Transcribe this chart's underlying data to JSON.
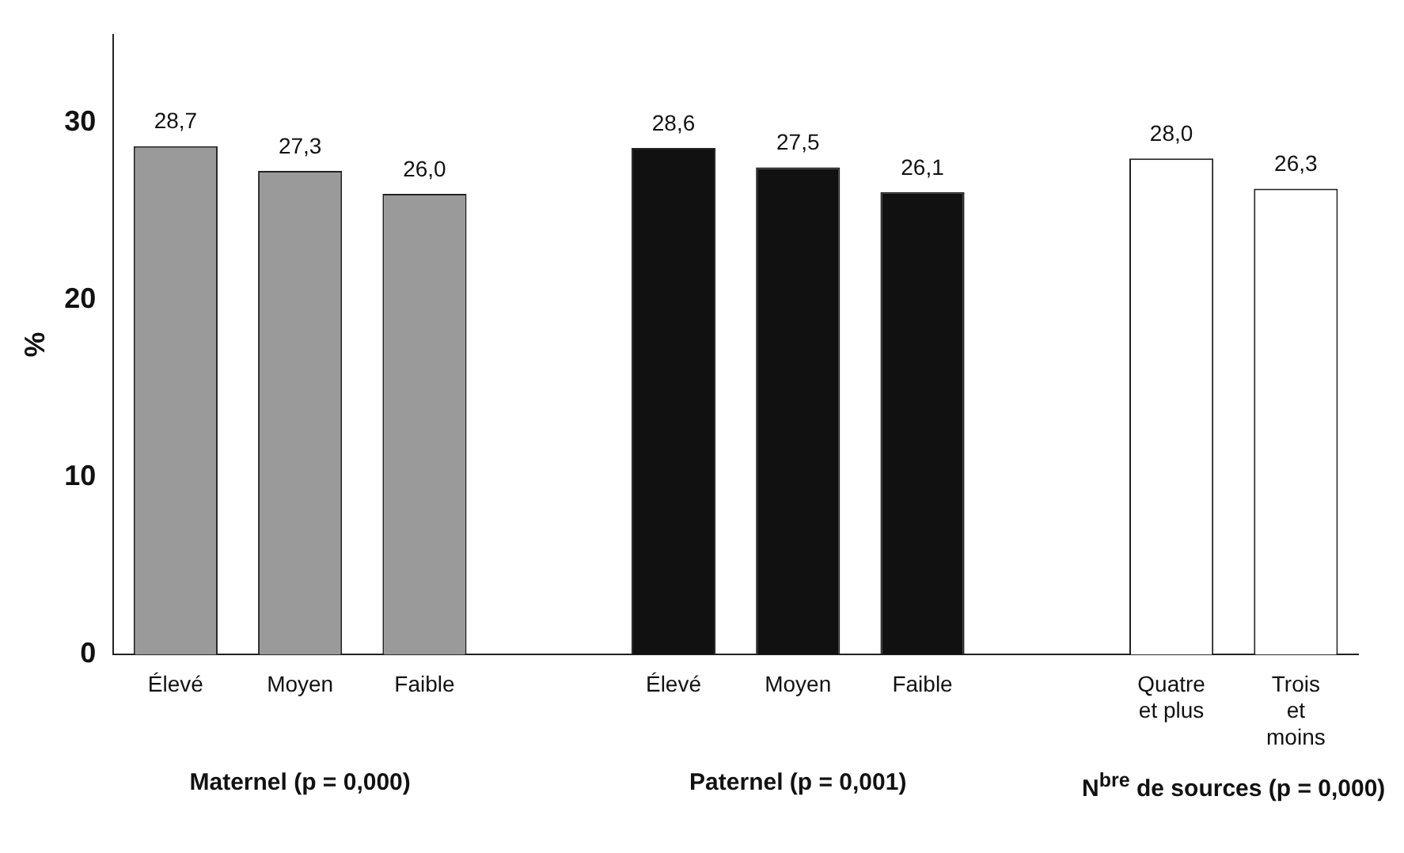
{
  "chart_data": {
    "type": "bar",
    "ylabel": "%",
    "categories": [
      "Élevé",
      "Moyen",
      "Faible",
      null,
      "Élevé",
      "Moyen",
      "Faible",
      null,
      "Quatre et plus",
      "Trois et moins"
    ],
    "values": [
      28.7,
      27.3,
      26.0,
      null,
      28.6,
      27.5,
      26.1,
      null,
      28.0,
      26.3
    ],
    "value_labels": [
      "28,7",
      "27,3",
      "26,0",
      null,
      "28,6",
      "27,5",
      "26,1",
      null,
      "28,0",
      "26,3"
    ],
    "colors": [
      "#9a9a9a",
      "#9a9a9a",
      "#9a9a9a",
      null,
      "#111111",
      "#111111",
      "#111111",
      null,
      "#ffffff",
      "#ffffff"
    ],
    "ylim": [
      0,
      35
    ],
    "yticks": [
      0,
      10,
      20,
      30
    ],
    "grid": false,
    "legend": false,
    "annotations": [
      "Maternel (p = 0,000)",
      "Paternel (p = 0,001)",
      "N$^{bre}$ de sources (p = 0,000)"
    ]
  }
}
